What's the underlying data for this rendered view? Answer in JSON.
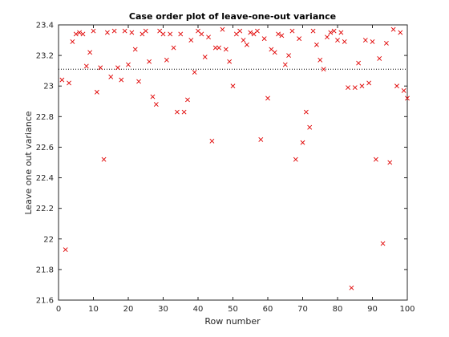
{
  "chart_data": {
    "type": "scatter",
    "title": "Case order plot of leave-one-out variance",
    "xlabel": "Row number",
    "ylabel": "Leave one out variance",
    "xlim": [
      0,
      100
    ],
    "ylim": [
      21.6,
      23.4
    ],
    "xticks": [
      "0",
      "10",
      "20",
      "30",
      "40",
      "50",
      "60",
      "70",
      "80",
      "90",
      "100"
    ],
    "yticks": [
      "21.6",
      "21.8",
      "22",
      "22.2",
      "22.4",
      "22.6",
      "22.8",
      "23",
      "23.2",
      "23.4"
    ],
    "reference_line": {
      "y": 23.11,
      "style": "dotted"
    },
    "marker": "x",
    "colors": {
      "marker": "#e00000",
      "axes": "#262626",
      "reference": "#000000"
    },
    "series": [
      {
        "x": [
          1,
          2,
          3,
          4,
          5,
          6,
          7,
          8,
          9,
          10,
          11,
          12,
          13,
          14,
          15,
          16,
          17,
          18,
          19,
          20,
          21,
          22,
          23,
          24,
          25,
          26,
          27,
          28,
          29,
          30,
          31,
          32,
          33,
          34,
          35,
          36,
          37,
          38,
          39,
          40,
          41,
          42,
          43,
          44,
          45,
          46,
          47,
          48,
          49,
          50,
          51,
          52,
          53,
          54,
          55,
          56,
          57,
          58,
          59,
          60,
          61,
          62,
          63,
          64,
          65,
          66,
          67,
          68,
          69,
          70,
          71,
          72,
          73,
          74,
          75,
          76,
          77,
          78,
          79,
          80,
          81,
          82,
          83,
          84,
          85,
          86,
          87,
          88,
          89,
          90,
          91,
          92,
          93,
          94,
          95,
          96,
          97,
          98,
          99,
          100
        ],
        "y": [
          23.04,
          21.93,
          23.02,
          23.29,
          23.34,
          23.35,
          23.34,
          23.13,
          23.22,
          23.36,
          22.96,
          23.12,
          22.52,
          23.35,
          23.06,
          23.36,
          23.12,
          23.04,
          23.36,
          23.14,
          23.35,
          23.24,
          23.03,
          23.34,
          23.36,
          23.16,
          22.93,
          22.88,
          23.36,
          23.34,
          23.17,
          23.34,
          23.25,
          22.83,
          23.34,
          22.83,
          22.91,
          23.3,
          23.09,
          23.36,
          23.34,
          23.19,
          23.32,
          22.64,
          23.25,
          23.25,
          23.37,
          23.24,
          23.16,
          23.0,
          23.34,
          23.36,
          23.3,
          23.27,
          23.35,
          23.34,
          23.36,
          22.65,
          23.31,
          22.92,
          23.24,
          23.22,
          23.34,
          23.33,
          23.14,
          23.2,
          23.36,
          22.52,
          23.31,
          22.63,
          22.83,
          22.73,
          23.36,
          23.27,
          23.17,
          23.11,
          23.32,
          23.35,
          23.36,
          23.3,
          23.35,
          23.29,
          22.99,
          21.68,
          22.99,
          23.15,
          23.0,
          23.3,
          23.02,
          23.29,
          22.52,
          23.18,
          21.97,
          23.28,
          22.5,
          23.37,
          23.0,
          23.35,
          22.97,
          22.92
        ]
      }
    ]
  }
}
